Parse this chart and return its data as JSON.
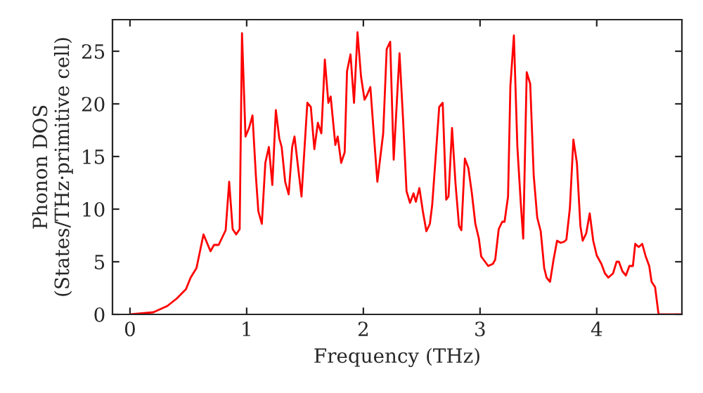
{
  "chart_data": {
    "type": "line",
    "xlabel": "Frequency (THz)",
    "ylabel": "Phonon DOS\n(States/THz·primitive cell)",
    "xlim": [
      -0.15,
      4.73
    ],
    "ylim": [
      0,
      28
    ],
    "xticks": [
      0,
      1,
      2,
      3,
      4
    ],
    "yticks": [
      0,
      5,
      10,
      15,
      20,
      25
    ],
    "grid": false,
    "marker": "none",
    "line_style": "solid",
    "series": [
      {
        "color": "#ff0000",
        "x": [
          0,
          0.2,
          0.32,
          0.4,
          0.48,
          0.52,
          0.57,
          0.63,
          0.69,
          0.72,
          0.76,
          0.82,
          0.85,
          0.88,
          0.91,
          0.94,
          0.96,
          0.99,
          1.02,
          1.05,
          1.08,
          1.1,
          1.13,
          1.16,
          1.19,
          1.22,
          1.25,
          1.28,
          1.3,
          1.33,
          1.36,
          1.39,
          1.41,
          1.47,
          1.52,
          1.55,
          1.58,
          1.61,
          1.64,
          1.67,
          1.7,
          1.72,
          1.76,
          1.78,
          1.81,
          1.84,
          1.86,
          1.89,
          1.92,
          1.95,
          1.98,
          2.01,
          2.03,
          2.06,
          2.12,
          2.17,
          2.2,
          2.23,
          2.26,
          2.29,
          2.31,
          2.34,
          2.37,
          2.4,
          2.43,
          2.45,
          2.48,
          2.51,
          2.54,
          2.57,
          2.59,
          2.62,
          2.65,
          2.68,
          2.71,
          2.73,
          2.76,
          2.79,
          2.82,
          2.84,
          2.87,
          2.9,
          2.93,
          2.96,
          2.99,
          3.01,
          3.07,
          3.11,
          3.13,
          3.16,
          3.19,
          3.21,
          3.24,
          3.26,
          3.29,
          3.32,
          3.35,
          3.37,
          3.4,
          3.43,
          3.46,
          3.49,
          3.52,
          3.55,
          3.57,
          3.6,
          3.63,
          3.66,
          3.69,
          3.72,
          3.74,
          3.77,
          3.8,
          3.83,
          3.86,
          3.88,
          3.91,
          3.94,
          3.97,
          4.0,
          4.04,
          4.07,
          4.1,
          4.14,
          4.17,
          4.19,
          4.22,
          4.25,
          4.28,
          4.31,
          4.33,
          4.36,
          4.39,
          4.42,
          4.45,
          4.47,
          4.5,
          4.53,
          4.73
        ],
        "values": [
          0,
          0.2,
          0.8,
          1.5,
          2.4,
          3.5,
          4.4,
          7.6,
          6.0,
          6.6,
          6.6,
          8.0,
          12.6,
          8.1,
          7.6,
          8.1,
          26.7,
          16.9,
          17.7,
          18.9,
          13.0,
          9.8,
          8.6,
          14.4,
          15.9,
          12.3,
          19.4,
          16.7,
          15.9,
          12.6,
          11.4,
          15.9,
          16.9,
          11.2,
          20.1,
          19.7,
          15.7,
          18.2,
          17.2,
          24.2,
          20.1,
          20.7,
          16.1,
          16.9,
          14.4,
          15.4,
          23.1,
          24.7,
          20.1,
          26.8,
          22.6,
          20.4,
          20.8,
          21.6,
          12.6,
          17.2,
          25.2,
          25.9,
          14.7,
          20.8,
          24.8,
          18.6,
          11.7,
          10.6,
          11.5,
          10.7,
          12.0,
          9.8,
          7.9,
          8.6,
          10.4,
          15.0,
          19.7,
          20.1,
          10.9,
          11.2,
          17.7,
          12.4,
          8.4,
          8.0,
          14.8,
          13.9,
          11.5,
          8.6,
          7.2,
          5.5,
          4.6,
          4.8,
          5.2,
          8.1,
          8.8,
          8.8,
          11.2,
          21.7,
          26.5,
          15.9,
          10.4,
          7.2,
          23.0,
          21.9,
          13.2,
          9.2,
          7.9,
          4.4,
          3.5,
          3.1,
          5.2,
          7.0,
          6.8,
          6.9,
          7.1,
          10.1,
          16.6,
          14.4,
          8.4,
          7.0,
          7.7,
          9.6,
          7.0,
          5.6,
          4.8,
          3.9,
          3.5,
          3.9,
          5.0,
          5.0,
          4.1,
          3.7,
          4.6,
          4.6,
          6.7,
          6.4,
          6.7,
          5.5,
          4.6,
          3.1,
          2.6,
          0,
          0
        ]
      }
    ]
  }
}
